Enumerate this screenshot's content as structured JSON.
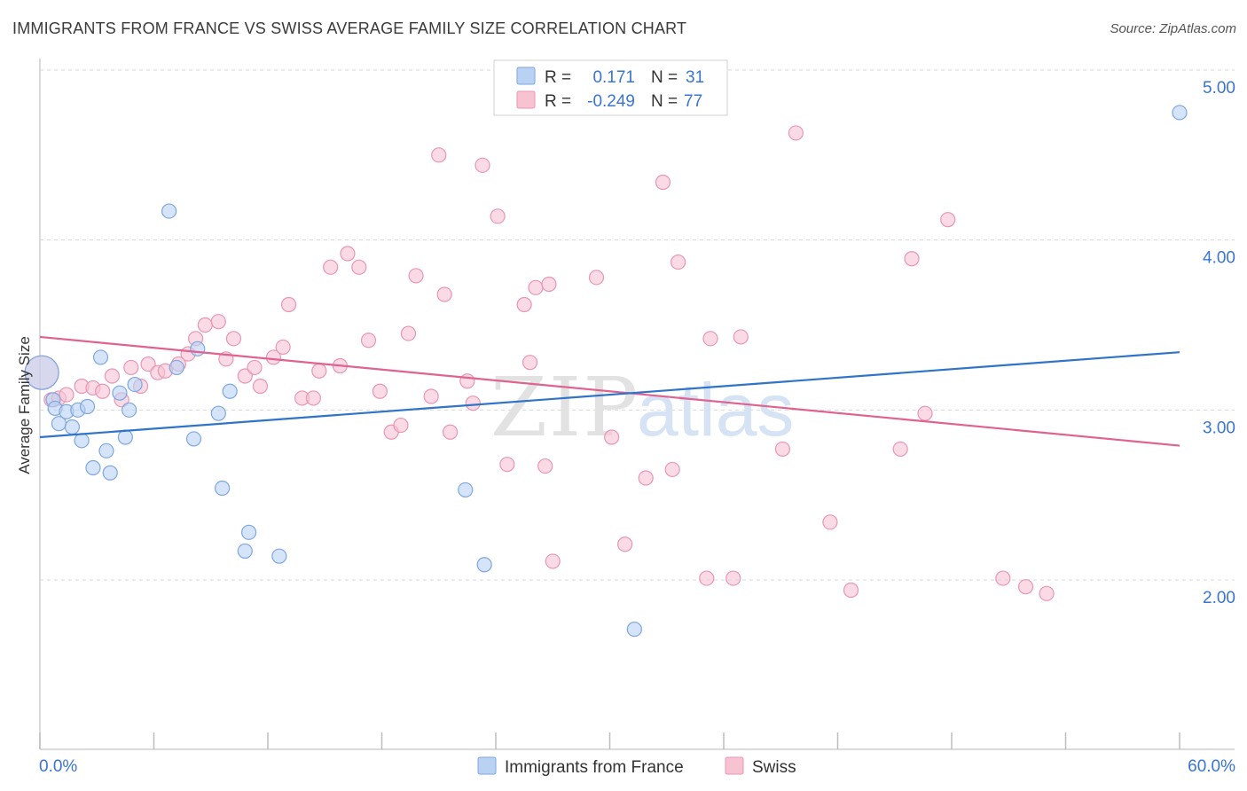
{
  "header": {
    "title": "IMMIGRANTS FROM FRANCE VS SWISS AVERAGE FAMILY SIZE CORRELATION CHART",
    "source": "Source: ZipAtlas.com"
  },
  "stats": {
    "r_label": "R =",
    "n_label": "N =",
    "rows": [
      {
        "r": "0.171",
        "n": "31"
      },
      {
        "r": "-0.249",
        "n": "77"
      }
    ]
  },
  "watermark": {
    "zip": "ZIP",
    "atlas": "atlas"
  },
  "colors": {
    "blue_fill": "#b9d2f3",
    "blue_stroke": "#7ea6df",
    "blue_line": "#2f74c8",
    "pink_fill": "#f7c3d3",
    "pink_stroke": "#e896b1",
    "pink_line": "#e0628f",
    "grid": "#d9d9d9",
    "axis_text": "#3a74d1"
  },
  "chart_data": {
    "type": "scatter",
    "title": "IMMIGRANTS FROM FRANCE VS SWISS AVERAGE FAMILY SIZE CORRELATION CHART",
    "ylabel": "Average Family Size",
    "x_tick_labels": [
      "0.0%",
      "60.0%"
    ],
    "y_tick_labels": [
      "2.00",
      "3.00",
      "4.00",
      "5.00"
    ],
    "y_ticks": [
      2,
      3,
      4,
      5
    ],
    "xlim": [
      0,
      60
    ],
    "ylim": [
      1.0,
      5.1
    ],
    "grid": true,
    "legend_position": "bottom-center",
    "series": [
      {
        "name": "Immigrants from France",
        "color": "#b9d2f3",
        "r": 0.171,
        "n": 31,
        "trend": {
          "x": [
            0,
            60
          ],
          "y": [
            2.84,
            3.34
          ]
        },
        "points": [
          [
            0.1,
            3.22
          ],
          [
            0.7,
            3.06
          ],
          [
            0.8,
            3.01
          ],
          [
            1.0,
            2.92
          ],
          [
            1.4,
            2.99
          ],
          [
            1.7,
            2.9
          ],
          [
            2.0,
            3.0
          ],
          [
            2.2,
            2.82
          ],
          [
            2.5,
            3.02
          ],
          [
            2.8,
            2.66
          ],
          [
            3.2,
            3.31
          ],
          [
            3.5,
            2.76
          ],
          [
            3.7,
            2.63
          ],
          [
            4.2,
            3.1
          ],
          [
            4.5,
            2.84
          ],
          [
            4.7,
            3.0
          ],
          [
            5.0,
            3.15
          ],
          [
            6.8,
            4.17
          ],
          [
            7.2,
            3.25
          ],
          [
            8.1,
            2.83
          ],
          [
            8.3,
            3.36
          ],
          [
            9.4,
            2.98
          ],
          [
            9.6,
            2.54
          ],
          [
            10.0,
            3.11
          ],
          [
            10.8,
            2.17
          ],
          [
            11.0,
            2.28
          ],
          [
            12.6,
            2.14
          ],
          [
            22.4,
            2.53
          ],
          [
            23.4,
            2.09
          ],
          [
            31.3,
            1.71
          ],
          [
            60.0,
            4.75
          ]
        ]
      },
      {
        "name": "Swiss",
        "color": "#f7c3d3",
        "r": -0.249,
        "n": 77,
        "trend": {
          "x": [
            0,
            60
          ],
          "y": [
            3.43,
            2.79
          ]
        },
        "points": [
          [
            0.1,
            3.22
          ],
          [
            0.6,
            3.06
          ],
          [
            1.0,
            3.07
          ],
          [
            1.4,
            3.09
          ],
          [
            2.2,
            3.14
          ],
          [
            2.8,
            3.13
          ],
          [
            3.3,
            3.11
          ],
          [
            3.8,
            3.2
          ],
          [
            4.3,
            3.06
          ],
          [
            4.8,
            3.25
          ],
          [
            5.3,
            3.14
          ],
          [
            5.7,
            3.27
          ],
          [
            6.2,
            3.22
          ],
          [
            6.6,
            3.23
          ],
          [
            7.3,
            3.27
          ],
          [
            7.8,
            3.33
          ],
          [
            8.2,
            3.42
          ],
          [
            8.7,
            3.5
          ],
          [
            9.4,
            3.52
          ],
          [
            9.8,
            3.3
          ],
          [
            10.2,
            3.42
          ],
          [
            10.8,
            3.2
          ],
          [
            11.3,
            3.25
          ],
          [
            11.6,
            3.14
          ],
          [
            12.3,
            3.31
          ],
          [
            12.8,
            3.37
          ],
          [
            13.1,
            3.62
          ],
          [
            13.8,
            3.07
          ],
          [
            14.4,
            3.07
          ],
          [
            14.7,
            3.23
          ],
          [
            15.3,
            3.84
          ],
          [
            15.8,
            3.26
          ],
          [
            16.2,
            3.92
          ],
          [
            16.8,
            3.84
          ],
          [
            17.3,
            3.41
          ],
          [
            17.9,
            3.11
          ],
          [
            18.5,
            2.87
          ],
          [
            19.0,
            2.91
          ],
          [
            19.4,
            3.45
          ],
          [
            19.8,
            3.79
          ],
          [
            20.6,
            3.08
          ],
          [
            21.0,
            4.5
          ],
          [
            21.3,
            3.68
          ],
          [
            21.6,
            2.87
          ],
          [
            22.5,
            3.17
          ],
          [
            22.8,
            3.04
          ],
          [
            23.3,
            4.44
          ],
          [
            24.1,
            4.14
          ],
          [
            24.6,
            2.68
          ],
          [
            25.5,
            3.62
          ],
          [
            25.8,
            3.28
          ],
          [
            26.1,
            3.72
          ],
          [
            26.6,
            2.67
          ],
          [
            26.8,
            3.74
          ],
          [
            27.0,
            2.11
          ],
          [
            29.3,
            3.78
          ],
          [
            30.1,
            2.84
          ],
          [
            30.8,
            2.21
          ],
          [
            31.9,
            2.6
          ],
          [
            32.8,
            4.34
          ],
          [
            33.3,
            2.65
          ],
          [
            33.6,
            3.87
          ],
          [
            35.1,
            2.01
          ],
          [
            35.3,
            3.42
          ],
          [
            36.5,
            2.01
          ],
          [
            36.9,
            3.43
          ],
          [
            39.1,
            2.77
          ],
          [
            39.8,
            4.63
          ],
          [
            41.6,
            2.34
          ],
          [
            42.7,
            1.94
          ],
          [
            45.3,
            2.77
          ],
          [
            45.9,
            3.89
          ],
          [
            46.6,
            2.98
          ],
          [
            47.8,
            4.12
          ],
          [
            50.7,
            2.01
          ],
          [
            51.9,
            1.96
          ],
          [
            53.0,
            1.92
          ]
        ]
      }
    ]
  },
  "legend": {
    "items": [
      {
        "label": "Immigrants from France"
      },
      {
        "label": "Swiss"
      }
    ]
  }
}
